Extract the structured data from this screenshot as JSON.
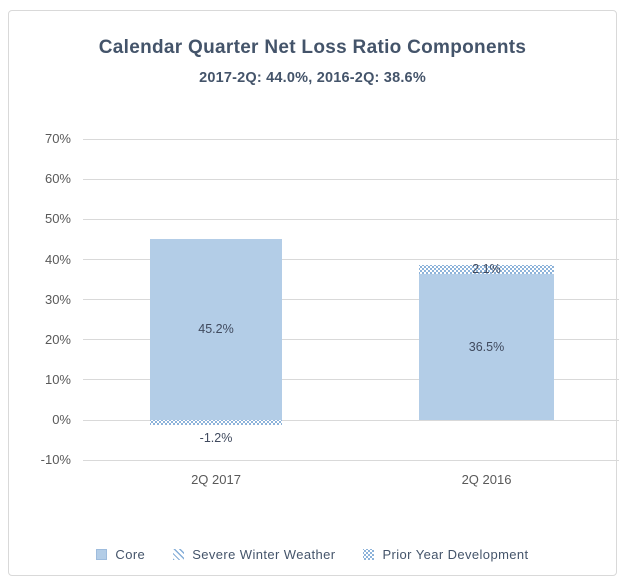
{
  "chart_data": {
    "type": "bar",
    "stacked": true,
    "title": "Calendar Quarter Net Loss Ratio Components",
    "subtitle": "2017-2Q: 44.0%, 2016-2Q: 38.6%",
    "categories": [
      "2Q 2017",
      "2Q 2016"
    ],
    "series": [
      {
        "name": "Core",
        "pattern": "solid",
        "values": [
          45.2,
          36.5
        ],
        "labels": [
          "45.2%",
          "36.5%"
        ]
      },
      {
        "name": "Severe Winter Weather",
        "pattern": "hatch",
        "values": [
          0,
          0
        ],
        "labels": [
          "",
          ""
        ]
      },
      {
        "name": "Prior Year Development",
        "pattern": "dotted",
        "values": [
          -1.2,
          2.1
        ],
        "labels": [
          "-1.2%",
          "2.1%"
        ]
      }
    ],
    "totals": [
      44.0,
      38.6
    ],
    "ylim": [
      -10,
      70
    ],
    "ytick_step": 10,
    "ytick_labels": [
      "70%",
      "60%",
      "50%",
      "40%",
      "30%",
      "20%",
      "10%",
      "0%",
      "-10%"
    ],
    "grid": true,
    "legend_position": "bottom",
    "colors": {
      "bar_fill": "#b3cde7",
      "pattern_accent": "#85aed8",
      "title_text": "#44546a",
      "axis_text": "#595959",
      "gridline": "#d9d9d9",
      "frame_border": "#d9d9d9"
    }
  }
}
